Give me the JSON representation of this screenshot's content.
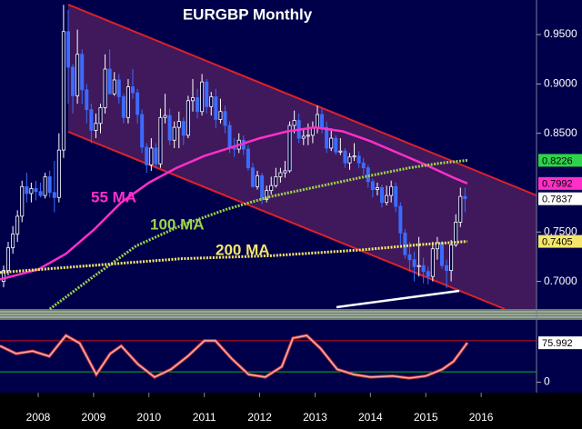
{
  "chart_data": [
    {
      "type": "candlestick",
      "title": "EURGBP Monthly",
      "xlim": [
        2007.81,
        2017.5
      ],
      "ylim": [
        0.672,
        0.985
      ],
      "yticks": [
        {
          "value": 0.95,
          "label": "0.9500"
        },
        {
          "value": 0.9,
          "label": "0.9000"
        },
        {
          "value": 0.85,
          "label": "0.8500"
        },
        {
          "value": 0.75,
          "label": "0.7500"
        },
        {
          "value": 0.7,
          "label": "0.7000"
        }
      ],
      "series": [
        {
          "color_up": "#ffffff",
          "color_down": "#3a6cff",
          "x": [
            2007.875,
            2007.958,
            2008.042,
            2008.125,
            2008.208,
            2008.292,
            2008.375,
            2008.458,
            2008.542,
            2008.625,
            2008.708,
            2008.792,
            2008.875,
            2008.958,
            2009.042,
            2009.125,
            2009.208,
            2009.292,
            2009.375,
            2009.458,
            2009.542,
            2009.625,
            2009.708,
            2009.792,
            2009.875,
            2009.958,
            2010.042,
            2010.125,
            2010.208,
            2010.292,
            2010.375,
            2010.458,
            2010.542,
            2010.625,
            2010.708,
            2010.792,
            2010.875,
            2010.958,
            2011.042,
            2011.125,
            2011.208,
            2011.292,
            2011.375,
            2011.458,
            2011.542,
            2011.625,
            2011.708,
            2011.792,
            2011.875,
            2011.958,
            2012.042,
            2012.125,
            2012.208,
            2012.292,
            2012.375,
            2012.458,
            2012.542,
            2012.625,
            2012.708,
            2012.792,
            2012.875,
            2012.958,
            2013.042,
            2013.125,
            2013.208,
            2013.292,
            2013.375,
            2013.458,
            2013.542,
            2013.625,
            2013.708,
            2013.792,
            2013.875,
            2013.958,
            2014.042,
            2014.125,
            2014.208,
            2014.292,
            2014.375,
            2014.458,
            2014.542,
            2014.625,
            2014.708,
            2014.792,
            2014.875,
            2014.958,
            2015.042,
            2015.125,
            2015.208,
            2015.292,
            2015.375,
            2015.458,
            2015.542,
            2015.625,
            2015.708,
            2015.792,
            2015.875,
            2015.958,
            2016.042,
            2016.125,
            2016.208
          ],
          "values": [
            [
              0.7,
              0.716,
              0.694,
              0.711
            ],
            [
              0.711,
              0.74,
              0.706,
              0.734
            ],
            [
              0.734,
              0.756,
              0.728,
              0.748
            ],
            [
              0.748,
              0.772,
              0.74,
              0.766
            ],
            [
              0.766,
              0.802,
              0.76,
              0.796
            ],
            [
              0.796,
              0.81,
              0.78,
              0.789
            ],
            [
              0.789,
              0.8,
              0.78,
              0.794
            ],
            [
              0.794,
              0.802,
              0.782,
              0.791
            ],
            [
              0.791,
              0.8,
              0.785,
              0.787
            ],
            [
              0.787,
              0.81,
              0.784,
              0.806
            ],
            [
              0.806,
              0.812,
              0.785,
              0.79
            ],
            [
              0.79,
              0.822,
              0.77,
              0.785
            ],
            [
              0.785,
              0.85,
              0.78,
              0.833
            ],
            [
              0.833,
              0.98,
              0.825,
              0.953
            ],
            [
              0.953,
              0.975,
              0.88,
              0.917
            ],
            [
              0.917,
              0.92,
              0.87,
              0.888
            ],
            [
              0.888,
              0.955,
              0.88,
              0.93
            ],
            [
              0.93,
              0.935,
              0.88,
              0.894
            ],
            [
              0.894,
              0.9,
              0.86,
              0.874
            ],
            [
              0.874,
              0.88,
              0.84,
              0.853
            ],
            [
              0.853,
              0.87,
              0.845,
              0.86
            ],
            [
              0.86,
              0.88,
              0.85,
              0.876
            ],
            [
              0.876,
              0.93,
              0.87,
              0.915
            ],
            [
              0.915,
              0.935,
              0.89,
              0.89
            ],
            [
              0.89,
              0.912,
              0.888,
              0.904
            ],
            [
              0.904,
              0.91,
              0.88,
              0.887
            ],
            [
              0.887,
              0.89,
              0.86,
              0.866
            ],
            [
              0.866,
              0.905,
              0.86,
              0.897
            ],
            [
              0.897,
              0.915,
              0.885,
              0.891
            ],
            [
              0.891,
              0.895,
              0.86,
              0.869
            ],
            [
              0.869,
              0.874,
              0.83,
              0.836
            ],
            [
              0.836,
              0.84,
              0.81,
              0.818
            ],
            [
              0.818,
              0.845,
              0.812,
              0.835
            ],
            [
              0.835,
              0.84,
              0.815,
              0.819
            ],
            [
              0.819,
              0.875,
              0.815,
              0.866
            ],
            [
              0.866,
              0.89,
              0.86,
              0.868
            ],
            [
              0.868,
              0.875,
              0.838,
              0.843
            ],
            [
              0.843,
              0.862,
              0.835,
              0.856
            ],
            [
              0.856,
              0.872,
              0.835,
              0.862
            ],
            [
              0.862,
              0.866,
              0.838,
              0.848
            ],
            [
              0.848,
              0.888,
              0.845,
              0.883
            ],
            [
              0.883,
              0.905,
              0.872,
              0.886
            ],
            [
              0.886,
              0.895,
              0.865,
              0.872
            ],
            [
              0.872,
              0.91,
              0.868,
              0.902
            ],
            [
              0.902,
              0.905,
              0.87,
              0.877
            ],
            [
              0.877,
              0.892,
              0.868,
              0.887
            ],
            [
              0.887,
              0.895,
              0.855,
              0.864
            ],
            [
              0.864,
              0.885,
              0.86,
              0.872
            ],
            [
              0.872,
              0.878,
              0.85,
              0.858
            ],
            [
              0.858,
              0.862,
              0.83,
              0.835
            ],
            [
              0.835,
              0.845,
              0.826,
              0.834
            ],
            [
              0.834,
              0.85,
              0.83,
              0.843
            ],
            [
              0.843,
              0.848,
              0.828,
              0.834
            ],
            [
              0.834,
              0.838,
              0.812,
              0.815
            ],
            [
              0.815,
              0.82,
              0.795,
              0.796
            ],
            [
              0.796,
              0.812,
              0.793,
              0.807
            ],
            [
              0.807,
              0.81,
              0.778,
              0.783
            ],
            [
              0.783,
              0.797,
              0.78,
              0.792
            ],
            [
              0.792,
              0.806,
              0.788,
              0.797
            ],
            [
              0.797,
              0.815,
              0.795,
              0.806
            ],
            [
              0.806,
              0.815,
              0.8,
              0.81
            ],
            [
              0.81,
              0.822,
              0.805,
              0.812
            ],
            [
              0.812,
              0.862,
              0.81,
              0.858
            ],
            [
              0.858,
              0.873,
              0.85,
              0.863
            ],
            [
              0.863,
              0.87,
              0.84,
              0.845
            ],
            [
              0.845,
              0.855,
              0.838,
              0.847
            ],
            [
              0.847,
              0.86,
              0.838,
              0.848
            ],
            [
              0.848,
              0.862,
              0.84,
              0.856
            ],
            [
              0.856,
              0.878,
              0.85,
              0.869
            ],
            [
              0.869,
              0.875,
              0.85,
              0.856
            ],
            [
              0.856,
              0.862,
              0.83,
              0.835
            ],
            [
              0.835,
              0.855,
              0.832,
              0.845
            ],
            [
              0.845,
              0.848,
              0.828,
              0.831
            ],
            [
              0.831,
              0.845,
              0.828,
              0.832
            ],
            [
              0.832,
              0.835,
              0.815,
              0.82
            ],
            [
              0.82,
              0.83,
              0.813,
              0.826
            ],
            [
              0.826,
              0.84,
              0.822,
              0.827
            ],
            [
              0.827,
              0.832,
              0.815,
              0.82
            ],
            [
              0.82,
              0.825,
              0.808,
              0.815
            ],
            [
              0.815,
              0.818,
              0.795,
              0.801
            ],
            [
              0.801,
              0.804,
              0.785,
              0.793
            ],
            [
              0.793,
              0.8,
              0.787,
              0.795
            ],
            [
              0.795,
              0.798,
              0.775,
              0.78
            ],
            [
              0.78,
              0.797,
              0.777,
              0.787
            ],
            [
              0.787,
              0.802,
              0.78,
              0.796
            ],
            [
              0.796,
              0.8,
              0.77,
              0.776
            ],
            [
              0.776,
              0.78,
              0.737,
              0.749
            ],
            [
              0.749,
              0.753,
              0.723,
              0.727
            ],
            [
              0.727,
              0.74,
              0.71,
              0.722
            ],
            [
              0.722,
              0.73,
              0.7,
              0.715
            ],
            [
              0.715,
              0.745,
              0.705,
              0.716
            ],
            [
              0.716,
              0.724,
              0.698,
              0.71
            ],
            [
              0.71,
              0.715,
              0.697,
              0.705
            ],
            [
              0.705,
              0.74,
              0.7,
              0.733
            ],
            [
              0.733,
              0.745,
              0.722,
              0.739
            ],
            [
              0.739,
              0.741,
              0.713,
              0.716
            ],
            [
              0.716,
              0.722,
              0.693,
              0.711
            ],
            [
              0.711,
              0.742,
              0.7,
              0.737
            ],
            [
              0.737,
              0.768,
              0.735,
              0.76
            ],
            [
              0.76,
              0.795,
              0.755,
              0.786
            ],
            [
              0.786,
              0.795,
              0.77,
              0.7837
            ]
          ]
        }
      ],
      "lines": [
        {
          "name": "55 MA",
          "color": "#ff2fc8",
          "dotted": false,
          "x": [
            2007.81,
            2008.5,
            2009.0,
            2009.5,
            2010.0,
            2010.5,
            2011.0,
            2011.5,
            2012.0,
            2012.5,
            2013.0,
            2013.5,
            2014.0,
            2014.5,
            2015.0,
            2015.5,
            2016.0,
            2016.25
          ],
          "values": [
            0.702,
            0.712,
            0.728,
            0.752,
            0.78,
            0.8,
            0.815,
            0.827,
            0.836,
            0.845,
            0.852,
            0.856,
            0.852,
            0.842,
            0.83,
            0.818,
            0.805,
            0.7992
          ]
        },
        {
          "name": "100 MA",
          "color": "#9bd34a",
          "dotted": true,
          "x": [
            2008.71,
            2009.5,
            2010.27,
            2011.1,
            2011.9,
            2012.7,
            2013.55,
            2014.4,
            2015.2,
            2015.8,
            2016.25
          ],
          "values": [
            0.672,
            0.705,
            0.736,
            0.757,
            0.773,
            0.786,
            0.796,
            0.806,
            0.815,
            0.82,
            0.8226
          ]
        },
        {
          "name": "200 MA",
          "color": "#f5e66a",
          "dotted": true,
          "x": [
            2007.81,
            2009.45,
            2011.09,
            2012.73,
            2014.37,
            2015.35,
            2016.25
          ],
          "values": [
            0.709,
            0.716,
            0.723,
            0.726,
            0.732,
            0.737,
            0.7405
          ]
        }
      ],
      "price_labels": [
        {
          "value": 0.8226,
          "label": "0.8226",
          "color": "#2fd34a"
        },
        {
          "value": 0.7992,
          "label": "0.7992",
          "color": "#ff2fc8"
        },
        {
          "value": 0.7837,
          "label": "0.7837",
          "color": "#ffffff"
        },
        {
          "value": 0.7405,
          "label": "0.7405",
          "color": "#f5e66a"
        }
      ]
    },
    {
      "type": "line",
      "xlim": [
        2007.81,
        2017.5
      ],
      "ylim": [
        -20,
        120
      ],
      "yticks": [
        0
      ],
      "xticks": [
        {
          "value": 2008.5,
          "label": "2008"
        },
        {
          "value": 2009.5,
          "label": "2009"
        },
        {
          "value": 2010.5,
          "label": "2010"
        },
        {
          "value": 2011.5,
          "label": "2011"
        },
        {
          "value": 2012.5,
          "label": "2012"
        },
        {
          "value": 2013.5,
          "label": "2013"
        },
        {
          "value": 2014.5,
          "label": "2014"
        },
        {
          "value": 2015.5,
          "label": "2015"
        },
        {
          "value": 2016.5,
          "label": "2016"
        }
      ],
      "levels": [
        {
          "value": 80,
          "color": "#d01010"
        },
        {
          "value": 20,
          "color": "#10b030"
        }
      ],
      "series": [
        {
          "color": "#f0b0b0",
          "x": [
            2007.81,
            2008.1,
            2008.4,
            2008.7,
            2009.0,
            2009.25,
            2009.55,
            2009.8,
            2010.0,
            2010.3,
            2010.6,
            2010.9,
            2011.2,
            2011.5,
            2011.7,
            2012.0,
            2012.3,
            2012.6,
            2012.9,
            2013.1,
            2013.35,
            2013.6,
            2013.9,
            2014.2,
            2014.5,
            2014.9,
            2015.2,
            2015.5,
            2015.8,
            2016.0,
            2016.25
          ],
          "values": [
            70,
            55,
            60,
            50,
            90,
            75,
            15,
            55,
            70,
            35,
            10,
            25,
            50,
            80,
            80,
            45,
            15,
            10,
            30,
            85,
            90,
            65,
            25,
            15,
            10,
            12,
            8,
            12,
            25,
            40,
            75.992
          ]
        }
      ],
      "price_labels": [
        {
          "value": 75.992,
          "label": "75.992",
          "color": "#ffffff"
        }
      ]
    }
  ]
}
